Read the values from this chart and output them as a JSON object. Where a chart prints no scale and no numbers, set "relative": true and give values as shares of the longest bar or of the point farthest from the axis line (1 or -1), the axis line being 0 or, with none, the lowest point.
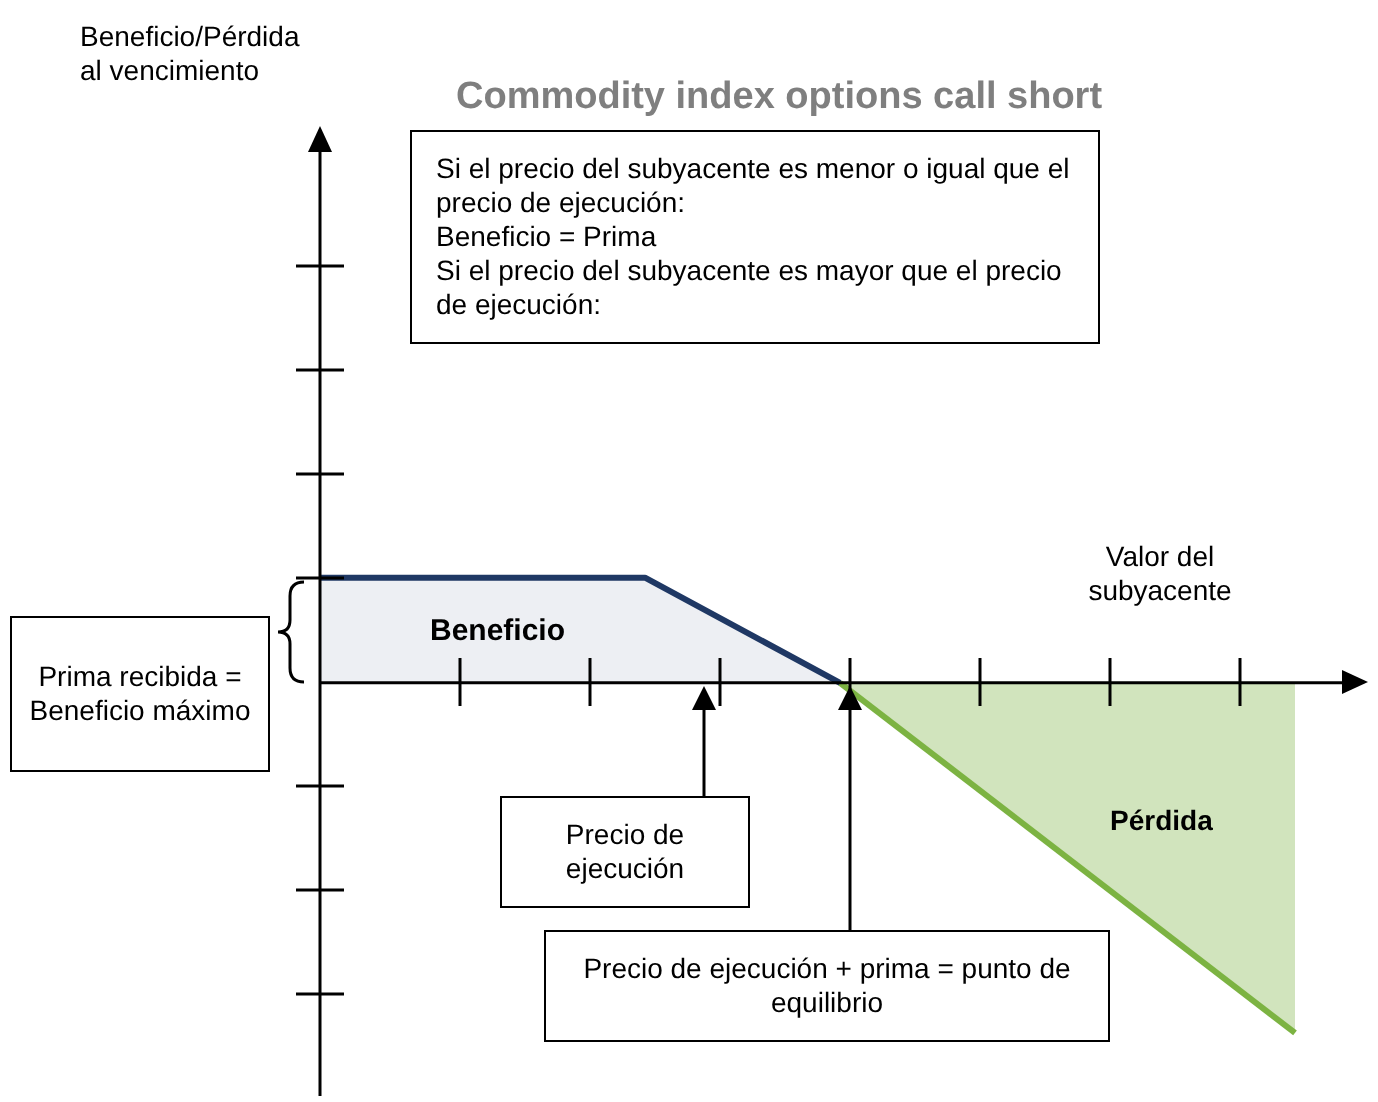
{
  "chart_data": {
    "type": "area",
    "title": "Commodity index options call short",
    "xlabel": "Valor del subyacente",
    "relative": true,
    "categories": [
      null,
      null,
      null,
      null,
      null,
      null,
      null,
      null,
      null,
      null,
      null,
      null,
      null,
      null,
      null,
      null
    ],
    "series": [
      {
        "color": "#1f3864",
        "values": [
          0.3,
          null,
          null,
          null,
          null,
          0.3,
          null,
          null,
          0,
          null,
          null,
          null,
          null,
          null,
          null,
          null
        ]
      },
      {
        "color": "#7cb342",
        "values": [
          null,
          null,
          null,
          null,
          null,
          null,
          null,
          null,
          0,
          null,
          null,
          null,
          null,
          null,
          null,
          -1
        ]
      }
    ],
    "annotations": [
      "Si el precio del subyacente es menor o igual que el precio de ejecución:\nBeneficio = Prima\nSi el precio del subyacente es mayor que el precio de ejecución:",
      "Prima recibida = Beneficio máximo",
      "Precio de ejecución",
      "Precio de ejecución + prima = punto de equilibrio",
      "Beneficio",
      "Pérdida",
      "Beneficio/Pérdida al vencimiento"
    ]
  }
}
